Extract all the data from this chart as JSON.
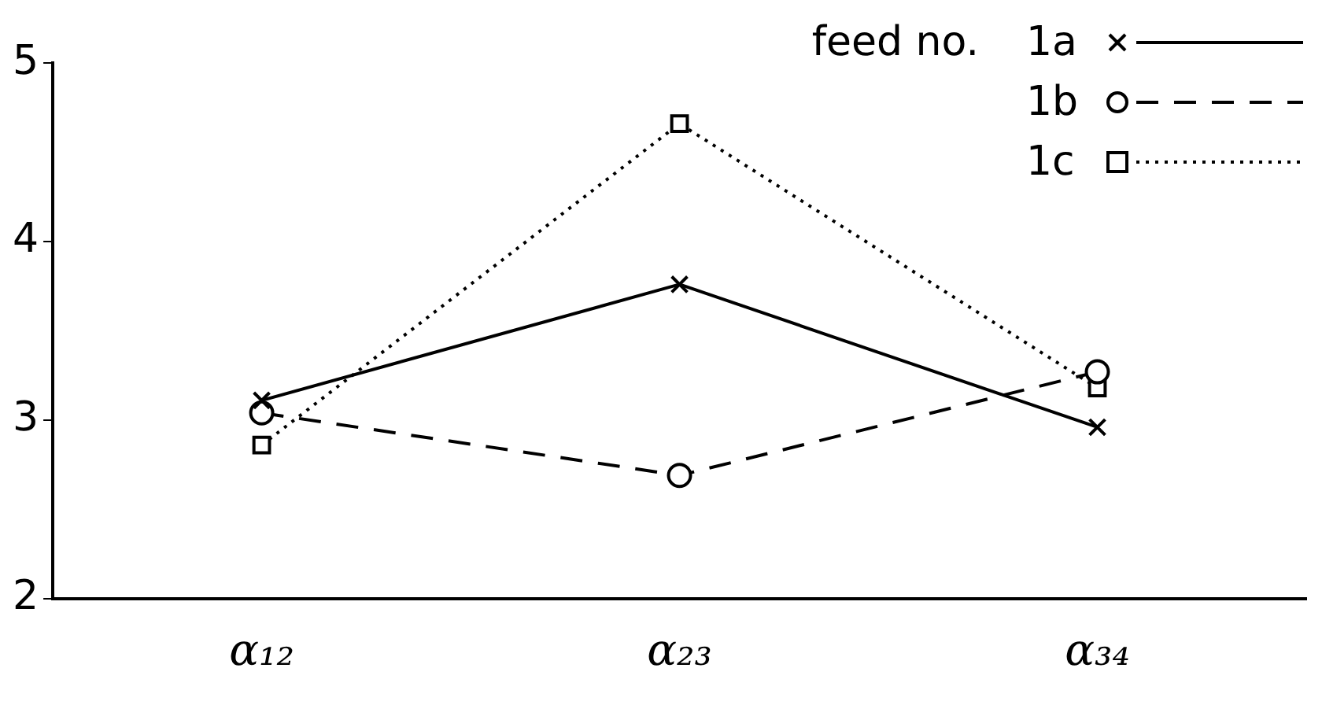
{
  "chart_data": {
    "type": "line",
    "legend_title": "feed no.",
    "categories": [
      "α₁₂",
      "α₂₃",
      "α₃₄"
    ],
    "series": [
      {
        "name": "1a",
        "color": "#000000",
        "marker": "cross",
        "line_style": "solid",
        "values": [
          3.11,
          3.76,
          2.96
        ]
      },
      {
        "name": "1b",
        "color": "#000000",
        "marker": "circle",
        "line_style": "dashed",
        "values": [
          3.04,
          2.69,
          3.27
        ]
      },
      {
        "name": "1c",
        "color": "#000000",
        "marker": "square",
        "line_style": "dotted",
        "values": [
          2.86,
          4.66,
          3.18
        ]
      }
    ],
    "ylim": [
      2,
      5
    ],
    "yticks": [
      2,
      3,
      4,
      5
    ],
    "grid": false,
    "legend": "top right"
  }
}
